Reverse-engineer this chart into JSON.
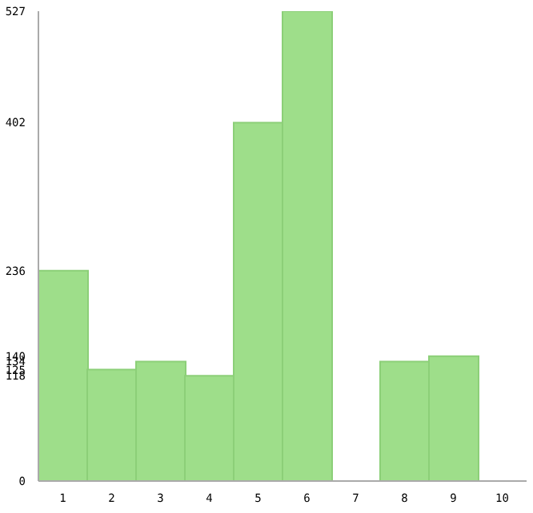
{
  "chart_data": {
    "type": "bar",
    "categories": [
      "1",
      "2",
      "3",
      "4",
      "5",
      "6",
      "7",
      "8",
      "9",
      "10"
    ],
    "values": [
      236,
      125,
      134,
      118,
      402,
      527,
      0,
      134,
      140,
      0
    ],
    "color": "#9ede8a",
    "ylim": [
      0,
      527
    ],
    "yticks": [
      0,
      118,
      125,
      134,
      140,
      236,
      402,
      527
    ],
    "grid": false
  }
}
